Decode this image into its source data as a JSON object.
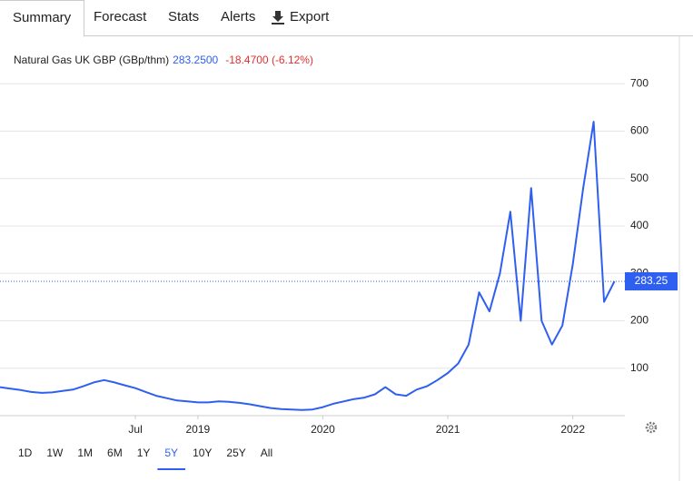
{
  "tabs": [
    "Summary",
    "Forecast",
    "Stats",
    "Alerts",
    "Export"
  ],
  "ranges": [
    "1D",
    "1W",
    "1M",
    "6M",
    "1Y",
    "5Y",
    "10Y",
    "25Y",
    "All"
  ],
  "chart_data": {
    "type": "line",
    "name": "Natural Gas UK GBP (GBp/thm)",
    "last": "283.2500",
    "change": "-18.4700 (-6.12%)",
    "color": "#2f5ff0",
    "x": [
      "2017-06",
      "2017-07",
      "2017-08",
      "2017-09",
      "2017-10",
      "2017-11",
      "2017-12",
      "2018-01",
      "2018-02",
      "2018-03",
      "2018-04",
      "2018-05",
      "2018-06",
      "2018-07",
      "2018-08",
      "2018-09",
      "2018-10",
      "2018-11",
      "2018-12",
      "2019-01",
      "2019-02",
      "2019-03",
      "2019-04",
      "2019-05",
      "2019-06",
      "2019-07",
      "2019-08",
      "2019-09",
      "2019-10",
      "2019-11",
      "2019-12",
      "2020-01",
      "2020-02",
      "2020-03",
      "2020-04",
      "2020-05",
      "2020-06",
      "2020-07",
      "2020-08",
      "2020-09",
      "2020-10",
      "2020-11",
      "2020-12",
      "2021-01",
      "2021-02",
      "2021-03",
      "2021-04",
      "2021-05",
      "2021-06",
      "2021-07",
      "2021-08",
      "2021-09",
      "2021-10",
      "2021-11",
      "2021-12",
      "2022-01",
      "2022-02",
      "2022-03",
      "2022-04",
      "2022-05"
    ],
    "values": [
      60,
      57,
      54,
      50,
      48,
      49,
      52,
      55,
      62,
      70,
      75,
      70,
      64,
      58,
      50,
      42,
      37,
      32,
      30,
      28,
      28,
      30,
      29,
      27,
      24,
      20,
      16,
      14,
      13,
      12,
      13,
      18,
      25,
      30,
      35,
      38,
      45,
      60,
      45,
      42,
      55,
      62,
      75,
      90,
      110,
      150,
      260,
      220,
      300,
      430,
      200,
      480,
      200,
      150,
      190,
      320,
      480,
      620,
      240,
      283.25
    ],
    "last_price": {
      "value": 283.25,
      "label": "283.25"
    },
    "xlim": [
      "2017-06",
      "2022-06"
    ],
    "xticks": [
      {
        "value": "2018-07",
        "label": "Jul"
      },
      {
        "value": "2019-01",
        "label": "2019"
      },
      {
        "value": "2020-01",
        "label": "2020"
      },
      {
        "value": "2021-01",
        "label": "2021"
      },
      {
        "value": "2022-01",
        "label": "2022"
      }
    ],
    "ylim": [
      0,
      800
    ],
    "yticks": [
      100,
      200,
      300,
      400,
      500,
      600,
      700
    ],
    "grid": true
  }
}
